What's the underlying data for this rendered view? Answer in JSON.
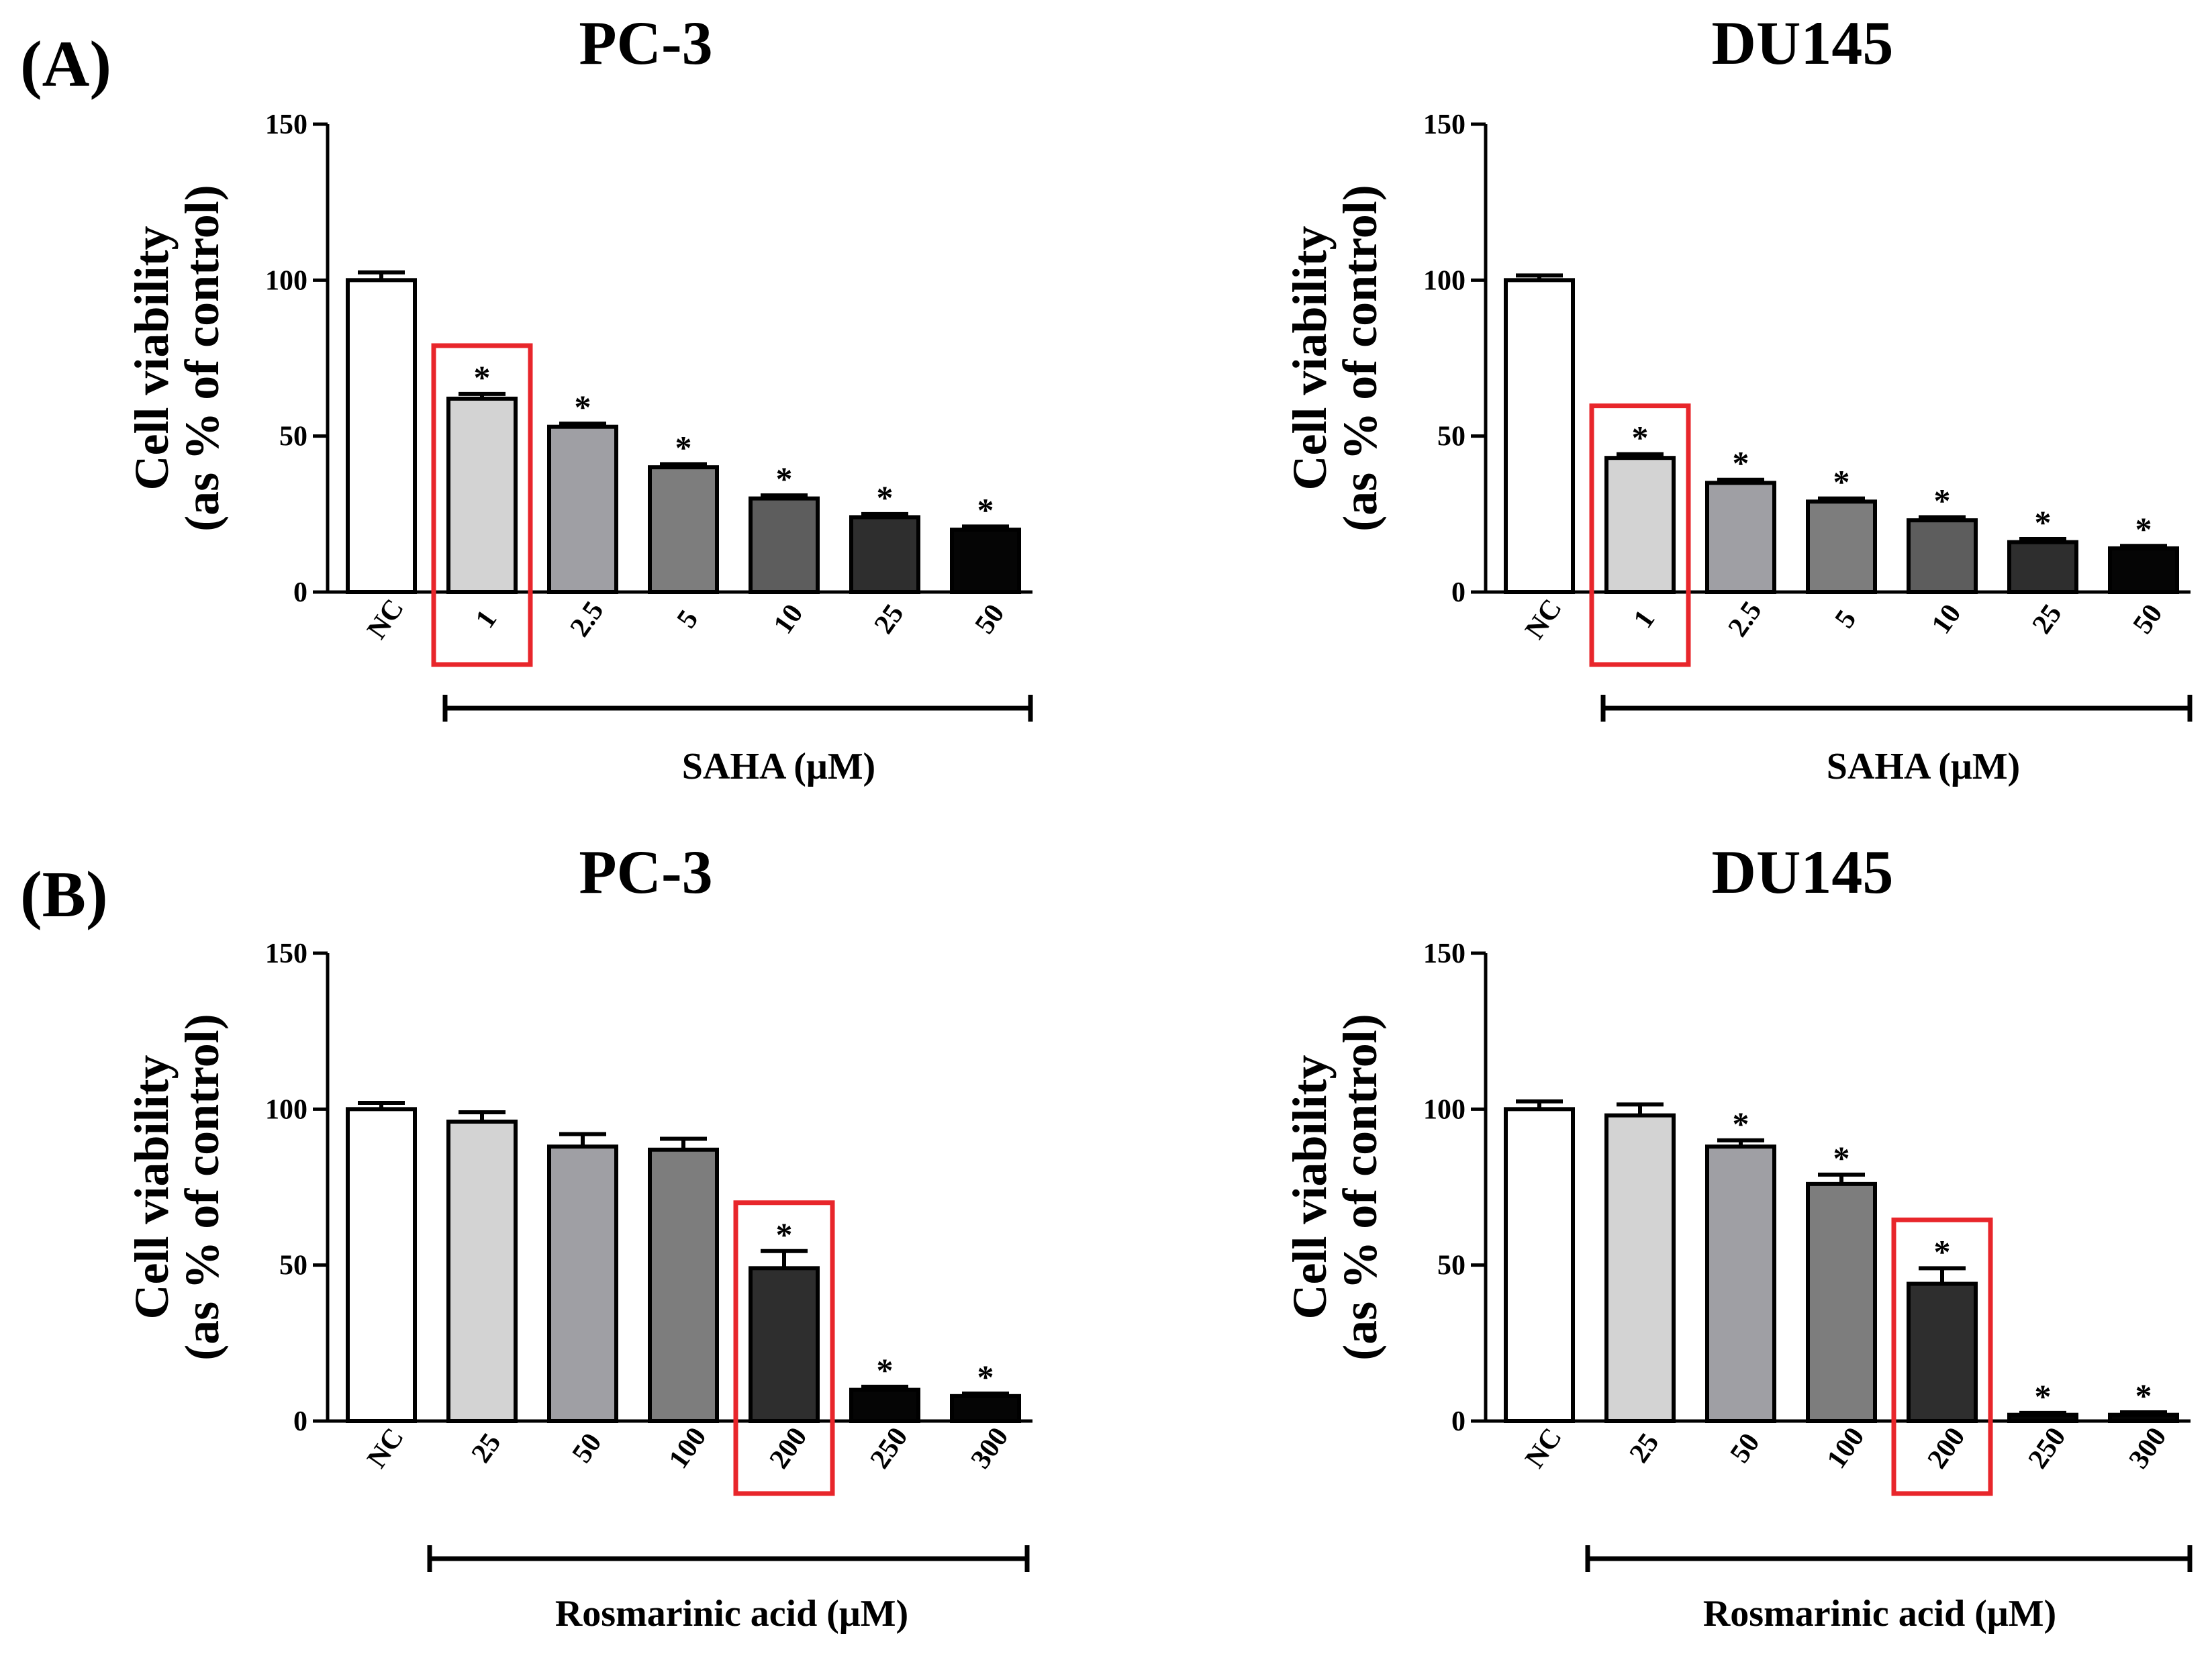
{
  "panels": [
    {
      "label": "(A)"
    },
    {
      "label": "(B)"
    }
  ],
  "chart_data": [
    {
      "type": "bar",
      "panel": "(A)",
      "title": "PC-3",
      "ylabel_line1": "Cell viability",
      "ylabel_line2": "(as % of control)",
      "ylim": [
        0,
        150
      ],
      "yticks": [
        "0",
        "50",
        "100",
        "150"
      ],
      "categories": [
        "NC",
        "1",
        "2.5",
        "5",
        "10",
        "25",
        "50"
      ],
      "values": [
        100,
        62,
        53,
        40,
        30,
        24,
        20
      ],
      "errors": [
        2.5,
        1.5,
        1.0,
        1.0,
        1.0,
        1.0,
        1.0
      ],
      "significant": [
        false,
        true,
        true,
        true,
        true,
        true,
        true
      ],
      "significance_marker": "*",
      "bar_colors": [
        "#ffffff",
        "#d3d3d3",
        "#9f9fa4",
        "#7d7d7d",
        "#5d5d5d",
        "#2e2e2e",
        "#050505"
      ],
      "highlight_category": "1",
      "highlight_color": "#e8262b",
      "treatment_label": "SAHA (μM)"
    },
    {
      "type": "bar",
      "panel": "(A)",
      "title": "DU145",
      "ylabel_line1": "Cell viability",
      "ylabel_line2": "(as % of control)",
      "ylim": [
        0,
        150
      ],
      "yticks": [
        "0",
        "50",
        "100",
        "150"
      ],
      "categories": [
        "NC",
        "1",
        "2.5",
        "5",
        "10",
        "25",
        "50"
      ],
      "values": [
        100,
        43,
        35,
        29,
        23,
        16,
        14
      ],
      "errors": [
        1.5,
        1.2,
        1.0,
        1.0,
        1.0,
        1.0,
        0.8
      ],
      "significant": [
        false,
        true,
        true,
        true,
        true,
        true,
        true
      ],
      "significance_marker": "*",
      "bar_colors": [
        "#ffffff",
        "#d3d3d3",
        "#9f9fa4",
        "#7d7d7d",
        "#5d5d5d",
        "#2e2e2e",
        "#050505"
      ],
      "highlight_category": "1",
      "highlight_color": "#e8262b",
      "treatment_label": "SAHA (μM)"
    },
    {
      "type": "bar",
      "panel": "(B)",
      "title": "PC-3",
      "ylabel_line1": "Cell viability",
      "ylabel_line2": "(as % of control)",
      "ylim": [
        0,
        150
      ],
      "yticks": [
        "0",
        "50",
        "100",
        "150"
      ],
      "categories": [
        "NC",
        "25",
        "50",
        "100",
        "200",
        "250",
        "300"
      ],
      "values": [
        100,
        96,
        88,
        87,
        49,
        10,
        8
      ],
      "errors": [
        2.0,
        3.0,
        4.0,
        3.5,
        5.5,
        1.0,
        0.8
      ],
      "significant": [
        false,
        false,
        false,
        false,
        true,
        true,
        true
      ],
      "significance_marker": "*",
      "bar_colors": [
        "#ffffff",
        "#d3d3d3",
        "#9f9fa4",
        "#7d7d7d",
        "#2e2e2e",
        "#050505",
        "#050505"
      ],
      "highlight_category": "200",
      "highlight_color": "#e8262b",
      "treatment_label": "Rosmarinic acid (μM)"
    },
    {
      "type": "bar",
      "panel": "(B)",
      "title": "DU145",
      "ylabel_line1": "Cell viability",
      "ylabel_line2": "(as % of control)",
      "ylim": [
        0,
        150
      ],
      "yticks": [
        "0",
        "50",
        "100",
        "150"
      ],
      "categories": [
        "NC",
        "25",
        "50",
        "100",
        "200",
        "250",
        "300"
      ],
      "values": [
        100,
        98,
        88,
        76,
        44,
        2,
        2
      ],
      "errors": [
        2.5,
        3.5,
        2.0,
        3.0,
        5.0,
        0.6,
        0.8
      ],
      "significant": [
        false,
        false,
        true,
        true,
        true,
        true,
        true
      ],
      "significance_marker": "*",
      "bar_colors": [
        "#ffffff",
        "#d3d3d3",
        "#9f9fa4",
        "#7d7d7d",
        "#2e2e2e",
        "#050505",
        "#050505"
      ],
      "highlight_category": "200",
      "highlight_color": "#e8262b",
      "treatment_label": "Rosmarinic acid (μM)"
    }
  ]
}
